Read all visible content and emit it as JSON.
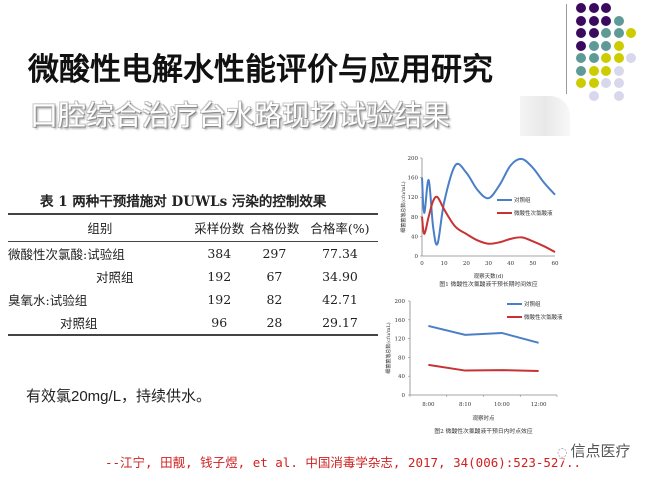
{
  "slide": {
    "title": "微酸性电解水性能评价与应用研究",
    "subtitle": "口腔综合治疗台水路现场试验结果",
    "note": "有效氯20mg/L，持续供水。",
    "citation": "--江宁, 田靓, 钱子煜, et al. 中国消毒学杂志, 2017, 34(006):523-527..",
    "watermark": "信点医疗"
  },
  "decor": {
    "dot_colors": {
      "purple": "#3b0a5e",
      "teal": "#5e9a96",
      "yellow": "#cccc00",
      "lavender": "#d8d8ec"
    }
  },
  "table": {
    "caption": "表 1   两种干预措施对 DUWLs 污染的控制效果",
    "headers": [
      "组别",
      "采样份数",
      "合格份数",
      "合格率(%)"
    ],
    "rows": [
      {
        "group": "微酸性次氯酸:试验组",
        "samples": "384",
        "qualified": "297",
        "rate": "77.34"
      },
      {
        "group": "对照组",
        "samples": "192",
        "qualified": "67",
        "rate": "34.90"
      },
      {
        "group": "臭氧水:试验组",
        "samples": "192",
        "qualified": "82",
        "rate": "42.71"
      },
      {
        "group": "对照组",
        "samples": "96",
        "qualified": "28",
        "rate": "29.17"
      }
    ]
  },
  "chart_data": [
    {
      "type": "line",
      "title": "图1  微酸性次氯酸液干预长期时间效应",
      "xlabel": "观察天数(d)",
      "ylabel": "细菌菌落总数(cfu/mL)",
      "x_ticks": [
        "0",
        "10",
        "20",
        "30",
        "40",
        "50",
        "60"
      ],
      "y_ticks": [
        "0",
        "40",
        "80",
        "120",
        "160",
        "200"
      ],
      "xlim": [
        0,
        60
      ],
      "ylim": [
        0,
        200
      ],
      "legend_position": "right-middle",
      "series": [
        {
          "name": "对照组",
          "color": "#4a7fc8",
          "x": [
            0,
            1,
            3,
            5,
            7,
            10,
            15,
            20,
            25,
            30,
            35,
            40,
            45,
            50,
            55,
            60
          ],
          "values": [
            160,
            88,
            155,
            60,
            25,
            110,
            185,
            170,
            135,
            118,
            145,
            185,
            198,
            180,
            150,
            125
          ]
        },
        {
          "name": "微酸性次氯酸液",
          "color": "#c83232",
          "x": [
            0,
            1,
            3,
            5,
            7,
            10,
            15,
            20,
            25,
            30,
            35,
            40,
            45,
            50,
            55,
            60
          ],
          "values": [
            80,
            45,
            80,
            112,
            120,
            95,
            60,
            45,
            32,
            25,
            28,
            35,
            38,
            30,
            20,
            8
          ]
        }
      ]
    },
    {
      "type": "line",
      "title": "图2  微酸性次氯酸液干预日内时点效应",
      "xlabel": "观察时点",
      "ylabel": "细菌菌落总数(cfu/mL)",
      "categories": [
        "8:00",
        "8:10",
        "10:00",
        "12:00"
      ],
      "y_ticks": [
        "0",
        "40",
        "80",
        "120",
        "160",
        "200"
      ],
      "ylim": [
        0,
        200
      ],
      "legend_position": "top-right",
      "series": [
        {
          "name": "对照组",
          "color": "#4a7fc8",
          "values": [
            147,
            128,
            132,
            111
          ]
        },
        {
          "name": "微酸性次氯酸液",
          "color": "#c83232",
          "values": [
            64,
            52,
            53,
            51
          ]
        }
      ]
    }
  ]
}
